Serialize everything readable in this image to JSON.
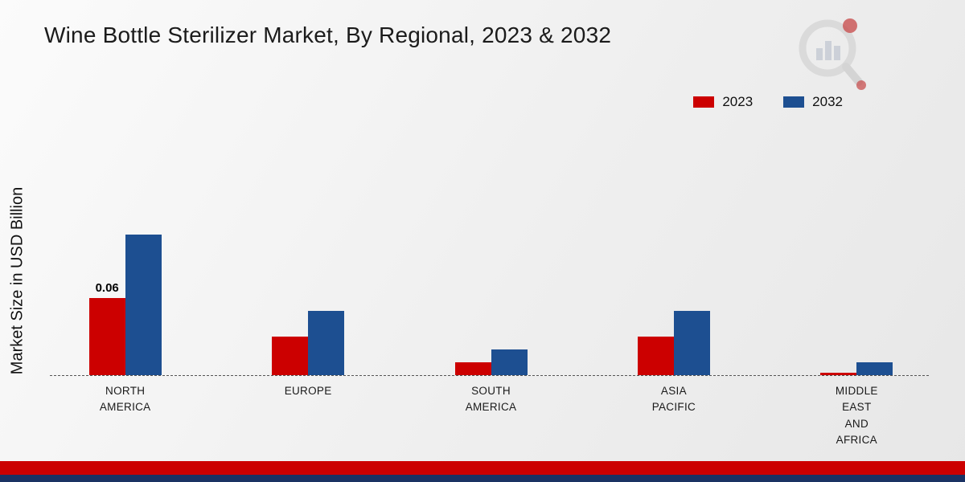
{
  "title": "Wine Bottle Sterilizer Market, By Regional, 2023 & 2032",
  "ylabel": "Market Size in USD Billion",
  "legend": [
    {
      "label": "2023",
      "color": "#cc0000"
    },
    {
      "label": "2032",
      "color": "#1d4f91"
    }
  ],
  "colors": {
    "series_2023": "#cc0000",
    "series_2032": "#1d4f91",
    "footer_red": "#cc0000",
    "footer_navy": "#1a3263",
    "baseline": "#555555"
  },
  "chart_data": {
    "type": "bar",
    "title": "Wine Bottle Sterilizer Market, By Regional, 2023 & 2032",
    "xlabel": "",
    "ylabel": "Market Size in USD Billion",
    "categories": [
      "NORTH AMERICA",
      "EUROPE",
      "SOUTH AMERICA",
      "ASIA PACIFIC",
      "MIDDLE EAST AND AFRICA"
    ],
    "series": [
      {
        "name": "2023",
        "color": "#cc0000",
        "values": [
          0.06,
          0.03,
          0.01,
          0.03,
          0.002
        ]
      },
      {
        "name": "2032",
        "color": "#1d4f91",
        "values": [
          0.11,
          0.05,
          0.02,
          0.05,
          0.01
        ]
      }
    ],
    "annotations": [
      {
        "category_index": 0,
        "series_index": 0,
        "text": "0.06"
      }
    ],
    "ylim": [
      0,
      0.18
    ],
    "grid": false,
    "legend_position": "top-right",
    "baseline_style": "dashed"
  }
}
